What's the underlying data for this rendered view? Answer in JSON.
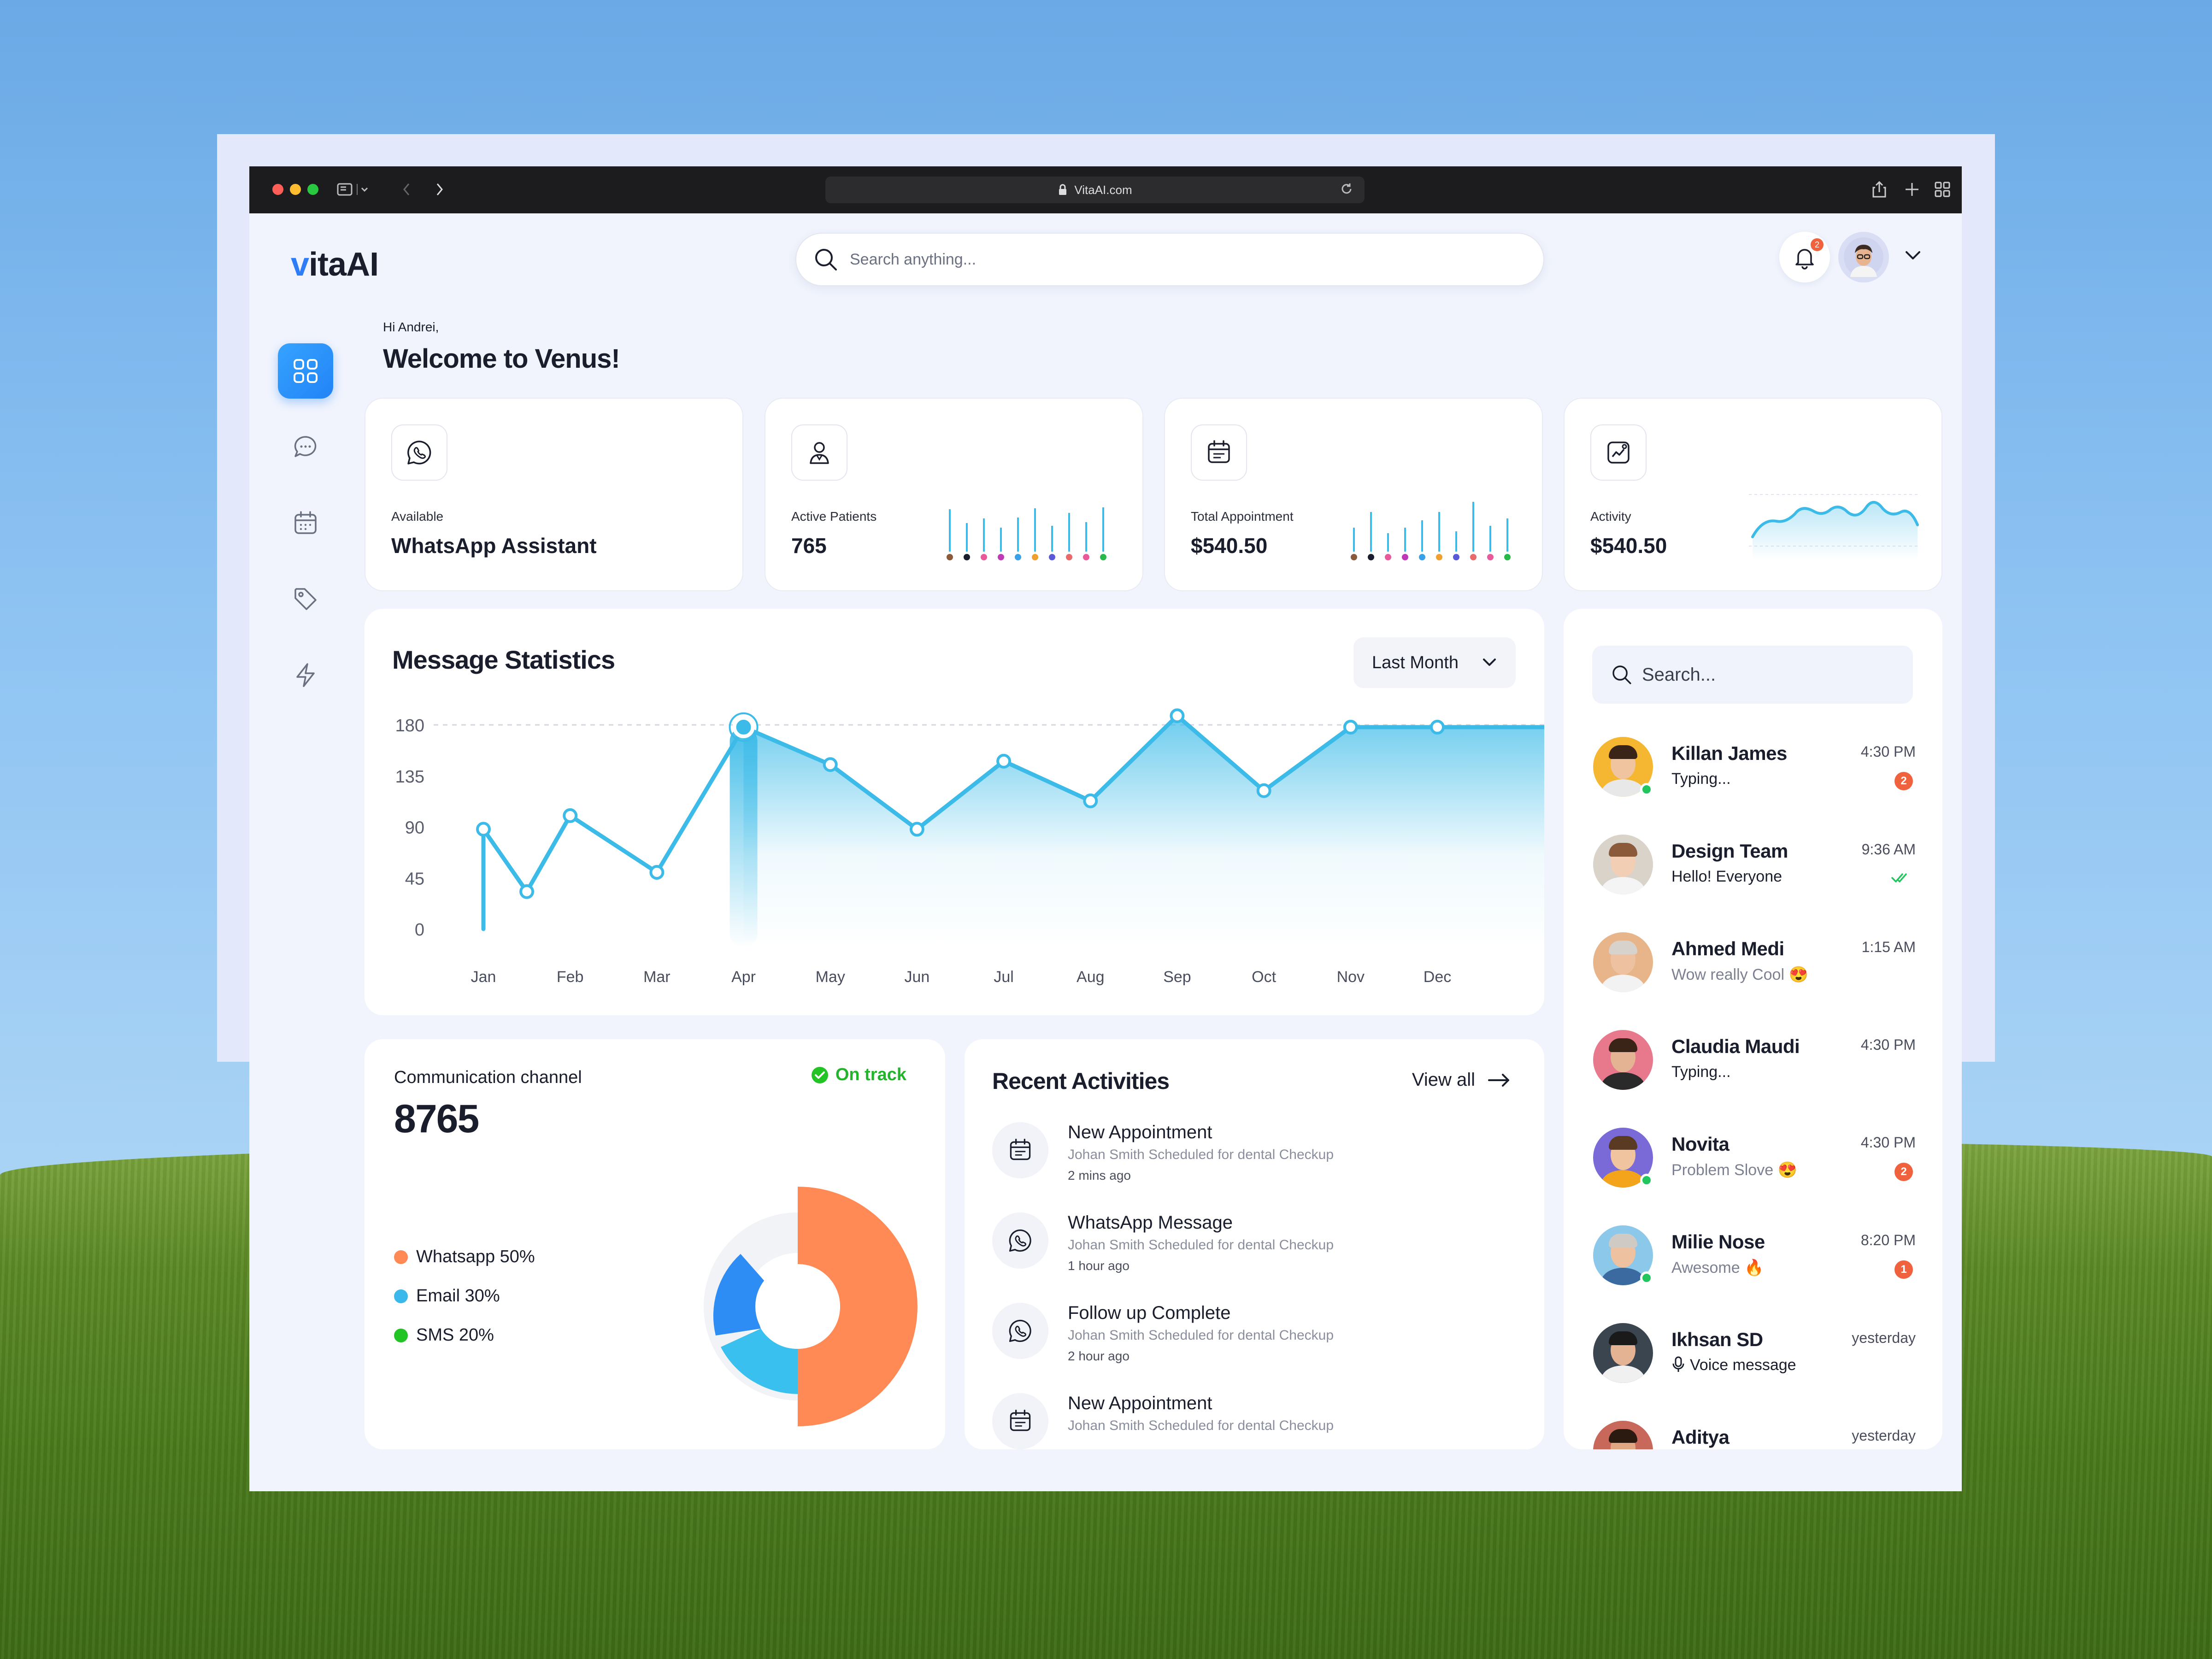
{
  "browser": {
    "url": "VitaAI.com"
  },
  "logo": {
    "v": "v",
    "rest": "itaAI"
  },
  "search": {
    "placeholder": "Search anything..."
  },
  "notifications": {
    "count": "2"
  },
  "greeting": {
    "small": "Hi Andrei,",
    "big": "Welcome to Venus!"
  },
  "stats": [
    {
      "label": "Available",
      "value": "WhatsApp Assistant",
      "icon": "whatsapp-icon"
    },
    {
      "label": "Active Patients",
      "value": "765",
      "icon": "doctor-icon"
    },
    {
      "label": "Total Appointment",
      "value": "$540.50",
      "icon": "calendar-list-icon"
    },
    {
      "label": "Activity",
      "value": "$540.50",
      "icon": "activity-chart-icon"
    }
  ],
  "message_stats": {
    "title": "Message Statistics",
    "range": "Last Month"
  },
  "chart_data": {
    "type": "area",
    "title": "Message Statistics",
    "categories": [
      "Jan",
      "Feb",
      "Mar",
      "Apr",
      "May",
      "Jun",
      "Jul",
      "Aug",
      "Sep",
      "Oct",
      "Nov",
      "Dec"
    ],
    "x": [
      1.0,
      1.5,
      2.0,
      3.0,
      4.0,
      5.0,
      6.0,
      7.0,
      8.0,
      9.0,
      10.0,
      11.0,
      12.0
    ],
    "values": [
      88,
      33,
      100,
      50,
      178,
      145,
      88,
      148,
      113,
      188,
      122,
      178,
      178
    ],
    "y_ticks": [
      "180",
      "135",
      "90",
      "45",
      "0"
    ],
    "ylim": [
      0,
      180
    ],
    "grid": false,
    "highlight": "May",
    "color": "#3cbbe8"
  },
  "communication": {
    "title": "Communication channel",
    "value": "8765",
    "status": "On track",
    "legend": [
      {
        "label": "Whatsapp 50%",
        "color": "#ff8a56"
      },
      {
        "label": "Email 30%",
        "color": "#3ab8ec"
      },
      {
        "label": "SMS 20%",
        "color": "#22c324"
      }
    ]
  },
  "activities": {
    "title": "Recent Activities",
    "view_all": "View all",
    "items": [
      {
        "title": "New Appointment",
        "sub": "Johan Smith Scheduled for dental Checkup",
        "time": "2 mins ago",
        "icon": "calendar-list-icon"
      },
      {
        "title": "WhatsApp Message",
        "sub": "Johan Smith Scheduled for dental Checkup",
        "time": "1 hour ago",
        "icon": "whatsapp-icon"
      },
      {
        "title": "Follow up Complete",
        "sub": "Johan Smith Scheduled for dental Checkup",
        "time": "2 hour ago",
        "icon": "whatsapp-icon"
      },
      {
        "title": "New Appointment",
        "sub": "Johan Smith Scheduled for dental Checkup",
        "time": "",
        "icon": "calendar-list-icon"
      }
    ]
  },
  "chats": {
    "search_placeholder": "Search...",
    "items": [
      {
        "name": "Killan James",
        "msg": "Typing...",
        "time": "4:30 PM",
        "badge": "2",
        "online": true,
        "bg": "#f5b731",
        "skin": "#f0c49f",
        "hair": "#3a2418",
        "shirt": "#e8e8e8"
      },
      {
        "name": "Design Team",
        "msg": "Hello! Everyone",
        "time": "9:36 AM",
        "read": true,
        "bg": "#d9d3c9",
        "skin": "#f2cfb4",
        "hair": "#8a5a3a",
        "shirt": "#f4f4f4"
      },
      {
        "name": "Ahmed Medi",
        "msg": "Wow really Cool 😍",
        "time": "1:15 AM",
        "muted": true,
        "bg": "#e8b58a",
        "skin": "#eec1a0",
        "hair": "#d8d2cc",
        "shirt": "#f2f2f2"
      },
      {
        "name": "Claudia Maudi",
        "msg": "Typing...",
        "time": "4:30 PM",
        "bg": "#e8788c",
        "skin": "#e4b394",
        "hair": "#3a2418",
        "shirt": "#2a2a2a"
      },
      {
        "name": "Novita",
        "msg": "Problem Slove 😍",
        "time": "4:30 PM",
        "badge": "2",
        "online": true,
        "muted": true,
        "bg": "#7a6ad8",
        "skin": "#f0c49f",
        "hair": "#5a3a22",
        "shirt": "#f4a41a"
      },
      {
        "name": "Milie Nose",
        "msg": "Awesome 🔥",
        "time": "8:20 PM",
        "badge": "1",
        "online": true,
        "muted": true,
        "bg": "#8cc8ea",
        "skin": "#eec1a0",
        "hair": "#cfcac4",
        "shirt": "#3a6aa0"
      },
      {
        "name": "Ikhsan SD",
        "msg": "Voice message",
        "time": "yesterday",
        "voice": true,
        "bg": "#3a4550",
        "skin": "#e4b394",
        "hair": "#1a1a1a",
        "shirt": "#f0f0f0"
      },
      {
        "name": "Aditya",
        "msg": "",
        "time": "yesterday",
        "bg": "#c8685a",
        "skin": "#e0a882",
        "hair": "#2a1a10",
        "shirt": "#444"
      }
    ]
  }
}
